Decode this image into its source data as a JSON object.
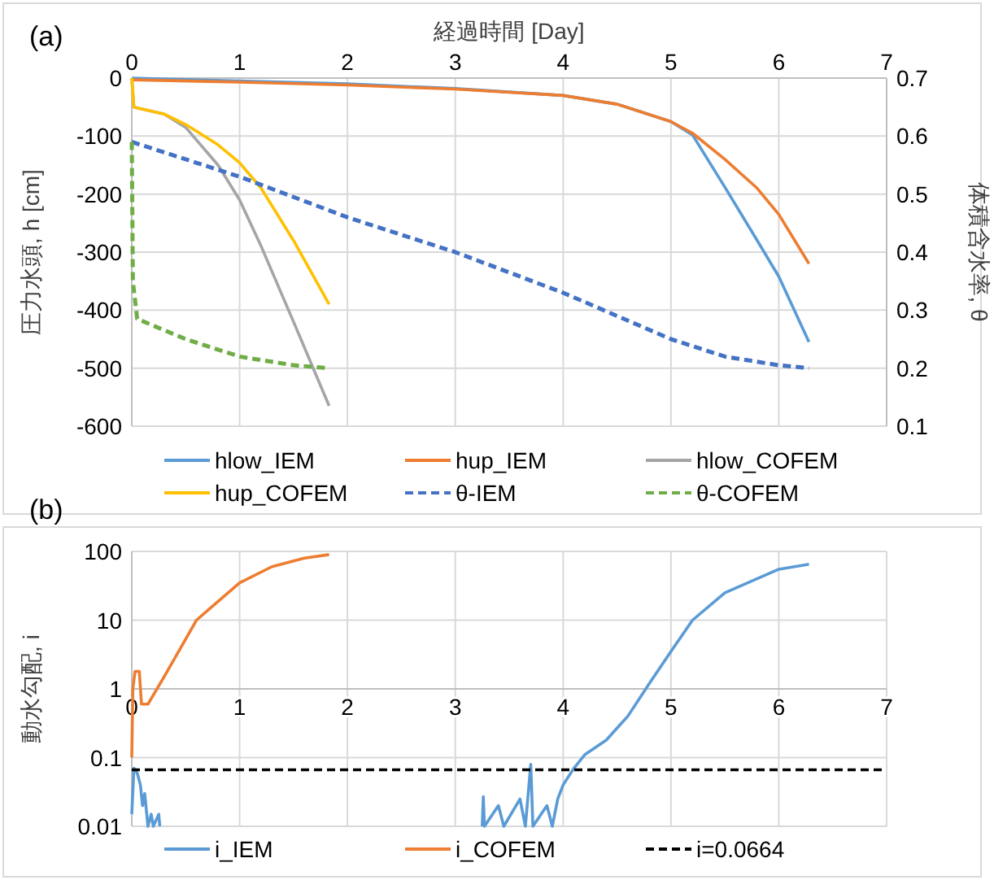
{
  "chart_data": [
    {
      "type": "line",
      "title": "(a)",
      "xlabel": "経過時間 [Day]",
      "ylabel": "圧力水頭, h [cm]",
      "y2label": "体積含水率, θ",
      "xlim": [
        0,
        7
      ],
      "xticks": [
        0,
        1,
        2,
        3,
        4,
        5,
        6,
        7
      ],
      "ylim": [
        -600,
        0
      ],
      "yticks": [
        -600,
        -500,
        -400,
        -300,
        -200,
        -100,
        0
      ],
      "y2lim": [
        0.1,
        0.7
      ],
      "y2ticks": [
        0.1,
        0.2,
        0.3,
        0.4,
        0.5,
        0.6,
        0.7
      ],
      "grid": true,
      "legend": "bottom",
      "line_style": "solid",
      "marker": "none",
      "series": [
        {
          "name": "hlow_IEM",
          "color": "#5b9bd5",
          "x": [
            0,
            1,
            2,
            3,
            4,
            4.5,
            5,
            5.2,
            5.5,
            5.8,
            6,
            6.28
          ],
          "values": [
            0,
            -5,
            -10,
            -18,
            -30,
            -45,
            -75,
            -98,
            -188,
            -280,
            -342,
            -455
          ]
        },
        {
          "name": "hup_IEM",
          "color": "#ed7d31",
          "x": [
            0,
            1,
            2,
            3,
            4,
            4.5,
            5,
            5.2,
            5.5,
            5.8,
            6,
            6.28
          ],
          "values": [
            -3,
            -7,
            -12,
            -19,
            -30,
            -45,
            -75,
            -95,
            -140,
            -190,
            -235,
            -320
          ]
        },
        {
          "name": "hlow_COFEM",
          "color": "#a5a5a5",
          "x": [
            0,
            0.02,
            0.3,
            0.5,
            0.8,
            1,
            1.2,
            1.5,
            1.83
          ],
          "values": [
            0,
            -50,
            -62,
            -85,
            -150,
            -210,
            -290,
            -420,
            -565
          ]
        },
        {
          "name": "hup_COFEM",
          "color": "#ffc000",
          "x": [
            0,
            0.02,
            0.3,
            0.5,
            0.8,
            1,
            1.2,
            1.5,
            1.83
          ],
          "values": [
            0,
            -50,
            -62,
            -80,
            -115,
            -146,
            -190,
            -280,
            -390
          ]
        },
        {
          "name": "θ-IEM",
          "color": "#4472c4",
          "axis": "y2",
          "line_style": "dashed",
          "x": [
            0,
            1,
            2,
            3,
            4,
            5,
            5.5,
            6,
            6.28
          ],
          "values": [
            0.59,
            0.53,
            0.46,
            0.4,
            0.33,
            0.25,
            0.22,
            0.205,
            0.2
          ]
        },
        {
          "name": "θ-COFEM",
          "color": "#70ad47",
          "axis": "y2",
          "line_style": "dashed",
          "x": [
            0,
            0.01,
            0.05,
            0.5,
            1,
            1.5,
            1.83
          ],
          "values": [
            0.59,
            0.35,
            0.285,
            0.25,
            0.22,
            0.205,
            0.2
          ]
        }
      ]
    },
    {
      "type": "line",
      "title": "(b)",
      "ylabel": "動水勾配, i",
      "xlim": [
        0,
        7
      ],
      "xticks": [
        0,
        1,
        2,
        3,
        4,
        5,
        6,
        7
      ],
      "ylim": [
        0.01,
        100
      ],
      "yticks": [
        0.01,
        0.1,
        1,
        10,
        100
      ],
      "log": true,
      "grid": true,
      "legend": "bottom",
      "line_style": "solid",
      "marker": "none",
      "series": [
        {
          "name": "i_IEM",
          "color": "#5b9bd5",
          "x": [
            0,
            0.02,
            0.05,
            0.08,
            0.1,
            0.12,
            0.15,
            0.18,
            0.2,
            0.25,
            0.26,
            0.27,
            3.25,
            3.26,
            3.27,
            3.4,
            3.45,
            3.6,
            3.65,
            3.7,
            3.72,
            3.85,
            3.9,
            3.95,
            4,
            4.1,
            4.2,
            4.4,
            4.6,
            4.8,
            5,
            5.2,
            5.5,
            6,
            6.28
          ],
          "values": [
            0.015,
            0.07,
            0.06,
            0.04,
            0.02,
            0.03,
            0.01,
            0.015,
            0.01,
            0.015,
            0.01,
            null,
            0.01,
            0.027,
            0.01,
            0.02,
            0.01,
            0.025,
            0.01,
            0.08,
            0.01,
            0.02,
            0.01,
            0.025,
            0.04,
            0.07,
            0.11,
            0.18,
            0.4,
            1.2,
            3.5,
            10,
            25,
            55,
            65
          ]
        },
        {
          "name": "i_COFEM",
          "color": "#ed7d31",
          "x": [
            0,
            0.01,
            0.03,
            0.07,
            0.09,
            0.15,
            0.3,
            0.6,
            1,
            1.3,
            1.6,
            1.83
          ],
          "values": [
            0.1,
            1,
            1.8,
            1.8,
            0.6,
            0.6,
            1.5,
            10,
            35,
            60,
            80,
            90
          ]
        }
      ],
      "ref_lines": [
        {
          "axis": "y",
          "value": 0.0664,
          "label": "i=0.0664",
          "color": "#000000",
          "line_style": "dashed"
        }
      ]
    }
  ]
}
